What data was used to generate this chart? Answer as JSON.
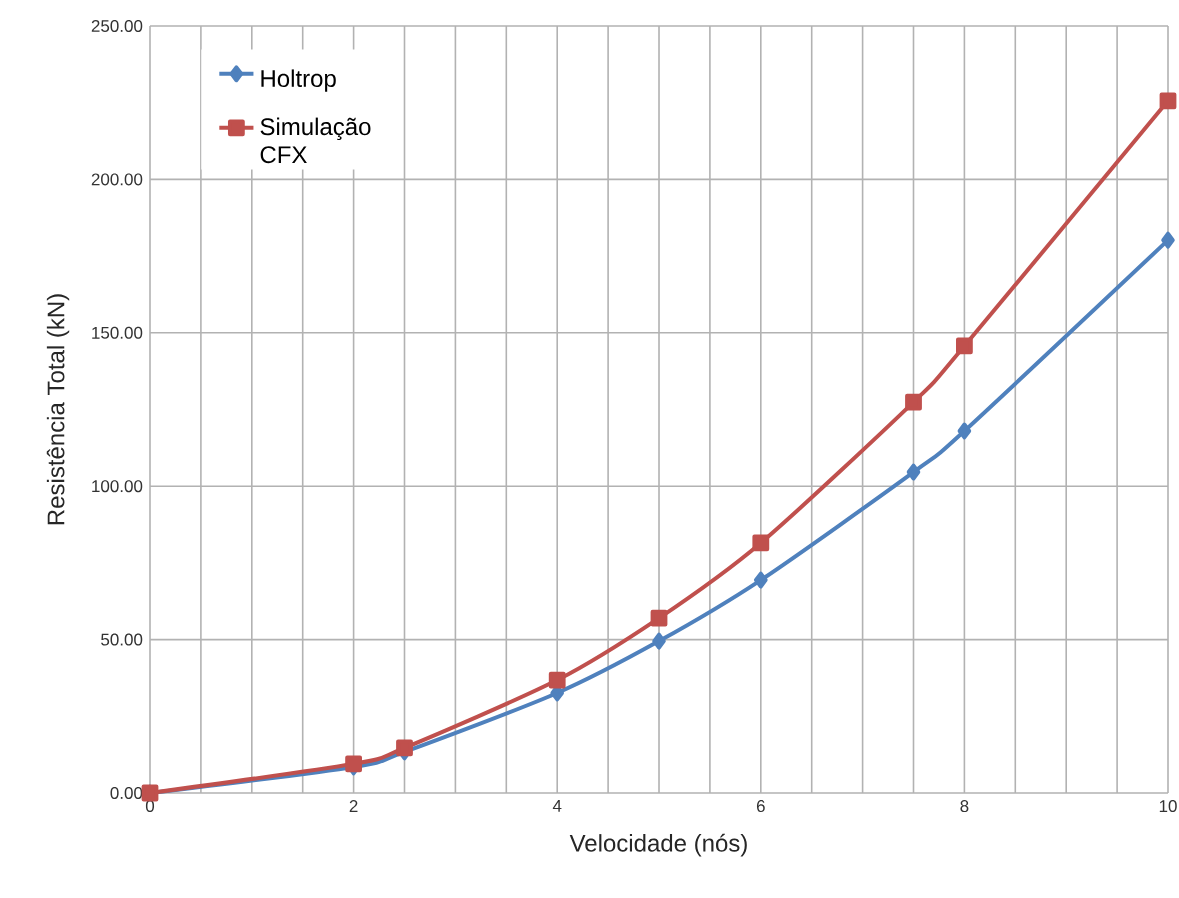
{
  "chart_data": {
    "type": "line",
    "xlabel": "Velocidade (nós)",
    "ylabel": "Resistência Total (kN)",
    "x": [
      0,
      2,
      2.5,
      4,
      5,
      6,
      7.5,
      8,
      10
    ],
    "series": [
      {
        "name": "Holtrop",
        "color": "#4f81bd",
        "marker": "diamond",
        "values": [
          0,
          8.5,
          13.4,
          32.6,
          49.5,
          69.4,
          104.6,
          118,
          180.2
        ]
      },
      {
        "name": "Simulação CFX",
        "color": "#c0504d",
        "marker": "square",
        "values": [
          0,
          9.5,
          14.7,
          36.8,
          57,
          81.5,
          127.4,
          145.7,
          225.6
        ]
      }
    ],
    "xlim": [
      0,
      10
    ],
    "ylim": [
      0,
      250
    ],
    "xticks": [
      0,
      {
        "value": 0.5,
        "label": null
      },
      {
        "value": 1,
        "label": null
      },
      {
        "value": 1.5,
        "label": null
      },
      2,
      {
        "value": 2.5,
        "label": null
      },
      {
        "value": 3,
        "label": null
      },
      {
        "value": 3.5,
        "label": null
      },
      4,
      {
        "value": 4.5,
        "label": null
      },
      {
        "value": 5,
        "label": null
      },
      {
        "value": 5.5,
        "label": null
      },
      6,
      {
        "value": 6.5,
        "label": null
      },
      {
        "value": 7,
        "label": null
      },
      {
        "value": 7.5,
        "label": null
      },
      8,
      {
        "value": 8.5,
        "label": null
      },
      {
        "value": 9,
        "label": null
      },
      {
        "value": 9.5,
        "label": null
      },
      10
    ],
    "yticks": [
      {
        "value": 0,
        "label": "0.00"
      },
      {
        "value": 50,
        "label": "50.00"
      },
      {
        "value": 100,
        "label": "100.00"
      },
      {
        "value": 150,
        "label": "150.00"
      },
      {
        "value": 200,
        "label": "200.00"
      },
      {
        "value": 250,
        "label": "250.00"
      }
    ],
    "grid": true,
    "legend": "top left",
    "line_style": "solid"
  }
}
